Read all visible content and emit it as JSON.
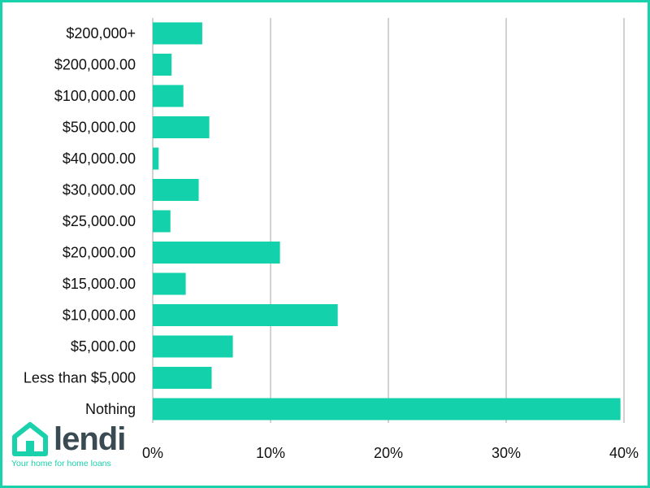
{
  "brand": {
    "name": "lendi",
    "tagline": "Your home for home loans",
    "accent_color": "#19d1aa",
    "text_color": "#3a4a53",
    "icon": "house-icon"
  },
  "chart_data": {
    "type": "bar",
    "orientation": "horizontal",
    "categories": [
      "$200,000+",
      "$200,000.00",
      "$100,000.00",
      "$50,000.00",
      "$40,000.00",
      "$30,000.00",
      "$25,000.00",
      "$20,000.00",
      "$15,000.00",
      "$10,000.00",
      "$5,000.00",
      "Less than $5,000",
      "Nothing"
    ],
    "values": [
      4.2,
      1.6,
      2.6,
      4.8,
      0.5,
      3.9,
      1.5,
      10.8,
      2.8,
      15.7,
      6.8,
      5.0,
      39.7
    ],
    "xticks": [
      "0%",
      "10%",
      "20%",
      "30%",
      "40%"
    ],
    "xlim": [
      0,
      40
    ],
    "grid": true,
    "bar_color": "#13d1aa",
    "grid_color": "#b3b3b3",
    "title": "",
    "xlabel": "",
    "ylabel": ""
  }
}
